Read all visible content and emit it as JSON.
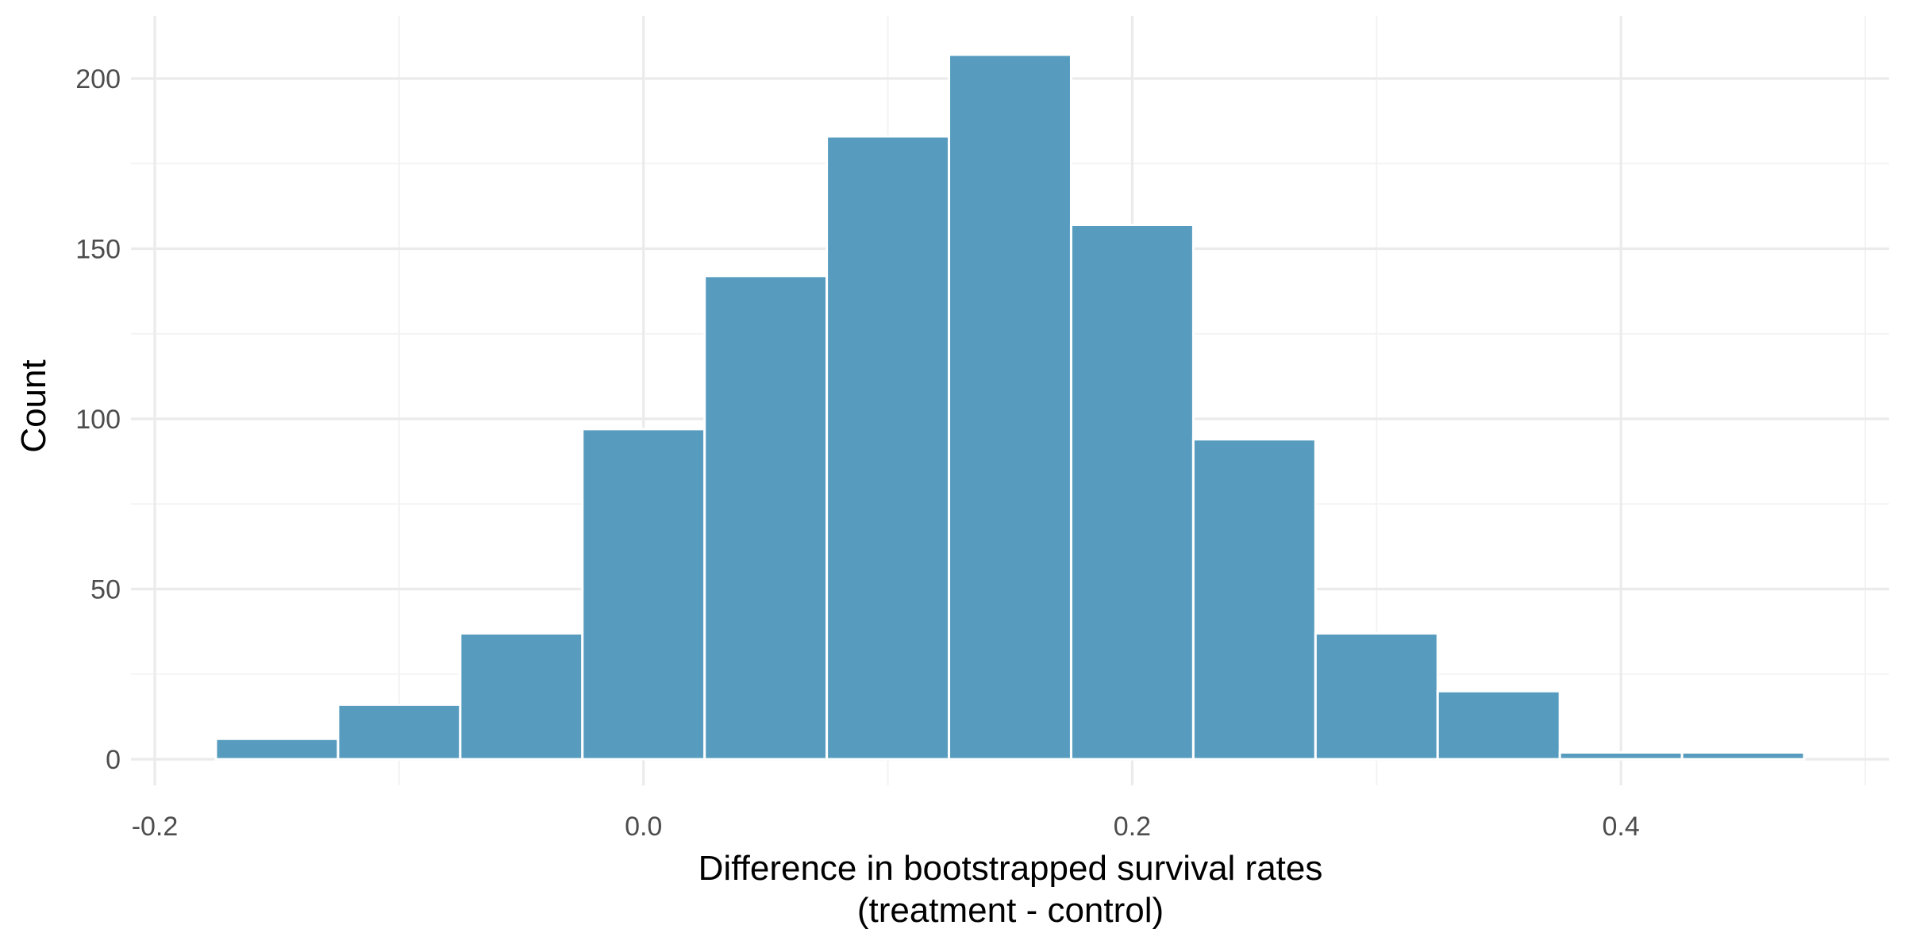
{
  "chart_data": {
    "type": "bar",
    "xlabel_lines": [
      "Difference in bootstrapped survival rates",
      "(treatment - control)"
    ],
    "ylabel": "Count",
    "xlim": [
      -0.2,
      0.5
    ],
    "ylim": [
      0,
      220
    ],
    "x_ticks": [
      -0.2,
      0.0,
      0.2,
      0.4
    ],
    "x_tick_labels": [
      "-0.2",
      "0.0",
      "0.2",
      "0.4"
    ],
    "x_minor": [
      -0.1,
      0.1,
      0.3,
      0.5
    ],
    "y_ticks": [
      0,
      50,
      100,
      150,
      200
    ],
    "y_tick_labels": [
      "0",
      "50",
      "100",
      "150",
      "200"
    ],
    "y_minor": [
      25,
      75,
      125,
      175
    ],
    "grid": true,
    "bar_color": "#579cbf",
    "bins": [
      {
        "x0": -0.175,
        "x1": -0.125,
        "count": 6
      },
      {
        "x0": -0.125,
        "x1": -0.075,
        "count": 16
      },
      {
        "x0": -0.075,
        "x1": -0.025,
        "count": 37
      },
      {
        "x0": -0.025,
        "x1": 0.025,
        "count": 97
      },
      {
        "x0": 0.025,
        "x1": 0.075,
        "count": 142
      },
      {
        "x0": 0.075,
        "x1": 0.125,
        "count": 183
      },
      {
        "x0": 0.125,
        "x1": 0.175,
        "count": 207
      },
      {
        "x0": 0.175,
        "x1": 0.225,
        "count": 157
      },
      {
        "x0": 0.225,
        "x1": 0.275,
        "count": 94
      },
      {
        "x0": 0.275,
        "x1": 0.325,
        "count": 37
      },
      {
        "x0": 0.325,
        "x1": 0.375,
        "count": 20
      },
      {
        "x0": 0.375,
        "x1": 0.425,
        "count": 2
      },
      {
        "x0": 0.425,
        "x1": 0.475,
        "count": 2
      }
    ]
  }
}
